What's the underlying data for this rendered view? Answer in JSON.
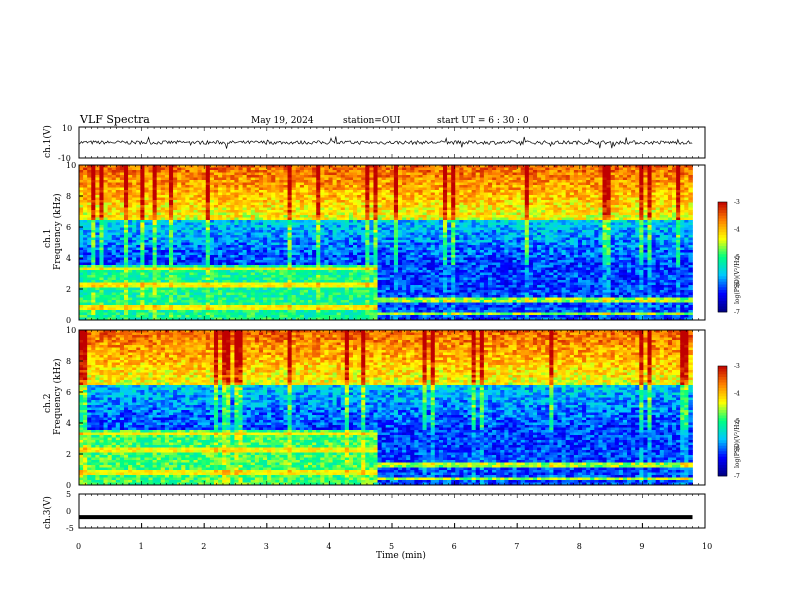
{
  "header": {
    "title": "VLF Spectra",
    "date": "May 19, 2024",
    "station": "station=OUI",
    "start": "start  UT =  6 : 30 : 0"
  },
  "chart_data": [
    {
      "type": "line",
      "name": "ch1-waveform",
      "ylabel": "ch.1(V)",
      "ylim": [
        -10,
        10
      ],
      "yticks": [
        "10",
        "-10"
      ],
      "x_range_min": [
        0,
        9.8
      ],
      "note": "noisy waveform centered at 0 V with amplitude about ±1.5 V and occasional spikes"
    },
    {
      "type": "heatmap",
      "name": "ch1-spectrogram",
      "ylabel": "ch.1\nFrequency (kHz)",
      "ylabel_line1": "ch.1",
      "ylabel_line2": "Frequency (kHz)",
      "xlim": [
        0,
        10
      ],
      "ylim": [
        0,
        10
      ],
      "yticks": [
        "0",
        "2",
        "4",
        "6",
        "8",
        "10"
      ],
      "data_extent_min": 9.8,
      "transition_min": 4.72,
      "colorbar": {
        "label": "log(PSD)(V²/Hz)",
        "range": [
          -7,
          -3
        ],
        "ticks": [
          "-3",
          "-4",
          "-5",
          "-6",
          "-7"
        ]
      }
    },
    {
      "type": "heatmap",
      "name": "ch2-spectrogram",
      "ylabel_line1": "ch.2",
      "ylabel_line2": "Frequency (kHz)",
      "xlim": [
        0,
        10
      ],
      "ylim": [
        0,
        10
      ],
      "yticks": [
        "0",
        "2",
        "4",
        "6",
        "8",
        "10"
      ],
      "data_extent_min": 9.8,
      "transition_min": 4.72,
      "colorbar": {
        "label": "log(PSD)(V²/Hz)",
        "range": [
          -7,
          -3
        ],
        "ticks": [
          "-3",
          "-4",
          "-5",
          "-6",
          "-7"
        ]
      }
    },
    {
      "type": "line",
      "name": "ch3-waveform",
      "ylabel": "ch.3(V)",
      "ylim": [
        -5,
        5
      ],
      "yticks": [
        "5",
        "0",
        "-5"
      ],
      "xlabel": "Time  (min)",
      "xticks": [
        "0",
        "1",
        "2",
        "3",
        "4",
        "5",
        "6",
        "7",
        "8",
        "9",
        "10"
      ],
      "x_range_min": [
        0,
        9.8
      ],
      "level_v": -1.8
    }
  ],
  "colors": {
    "colormap": [
      "#000080",
      "#0000ff",
      "#00c8ff",
      "#00ff80",
      "#ffff00",
      "#ff8000",
      "#c00000"
    ]
  }
}
